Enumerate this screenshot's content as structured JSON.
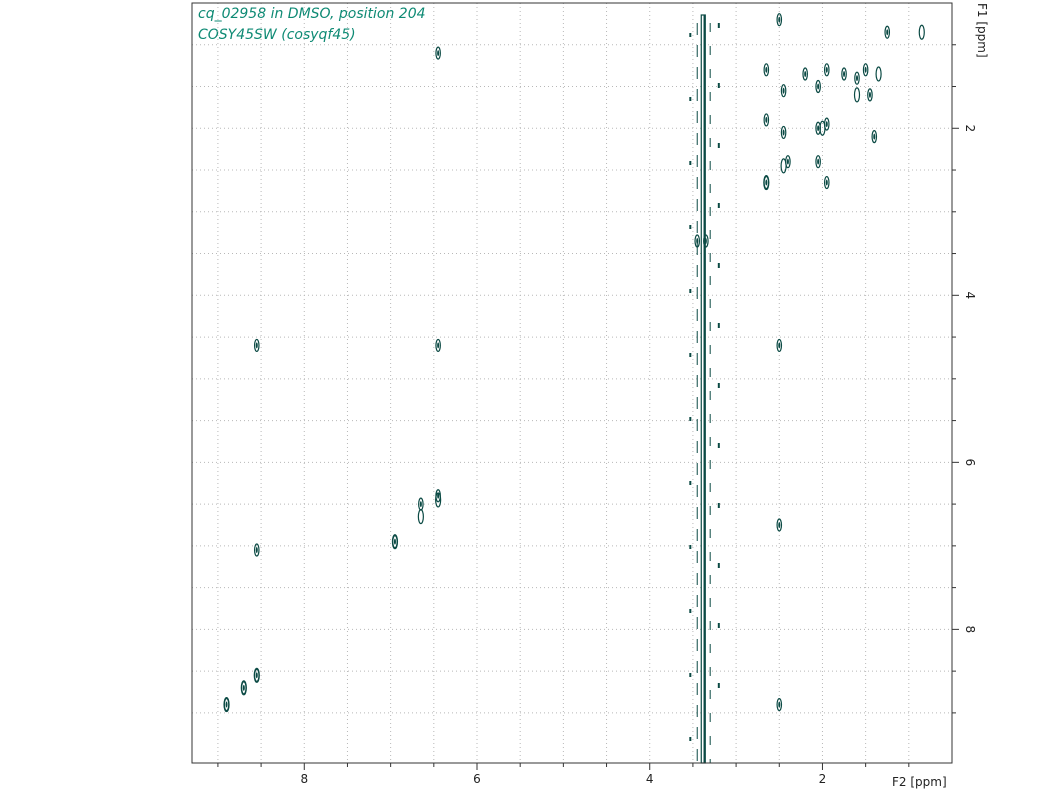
{
  "header": {
    "line1": "cq_02958 in DMSO, position 204",
    "line2": "COSY45SW (cosyqf45)"
  },
  "chart_data": {
    "type": "scatter",
    "subtype": "2D NMR COSY contour plot",
    "xlabel": "F2 [ppm]",
    "ylabel": "F1 [ppm]",
    "x_axis_reversed": true,
    "y_axis_reversed": true,
    "xlim": [
      9.3,
      0.5
    ],
    "ylim": [
      0.5,
      9.6
    ],
    "x_ticks": [
      8,
      6,
      4,
      2
    ],
    "y_ticks": [
      2,
      4,
      6,
      8
    ],
    "grid": "dotted",
    "contour_color": "#0b4a44",
    "series": [
      {
        "values": [
          {
            "x": 1.25,
            "y": 0.85
          },
          {
            "x": 2.5,
            "y": 0.7
          },
          {
            "x": 6.45,
            "y": 1.1
          },
          {
            "x": 2.65,
            "y": 1.3
          },
          {
            "x": 2.2,
            "y": 1.35
          },
          {
            "x": 1.95,
            "y": 1.3
          },
          {
            "x": 1.75,
            "y": 1.35
          },
          {
            "x": 1.6,
            "y": 1.4
          },
          {
            "x": 1.5,
            "y": 1.3
          },
          {
            "x": 2.45,
            "y": 1.55
          },
          {
            "x": 2.05,
            "y": 1.5
          },
          {
            "x": 1.45,
            "y": 1.6
          },
          {
            "x": 2.65,
            "y": 1.9
          },
          {
            "x": 2.45,
            "y": 2.05
          },
          {
            "x": 2.05,
            "y": 2.0
          },
          {
            "x": 1.95,
            "y": 1.95
          },
          {
            "x": 1.4,
            "y": 2.1
          },
          {
            "x": 2.4,
            "y": 2.4
          },
          {
            "x": 2.05,
            "y": 2.4
          },
          {
            "x": 2.65,
            "y": 2.65
          },
          {
            "x": 1.95,
            "y": 2.65
          },
          {
            "x": 3.45,
            "y": 3.35
          },
          {
            "x": 3.35,
            "y": 3.35
          },
          {
            "x": 8.55,
            "y": 4.6
          },
          {
            "x": 6.45,
            "y": 4.6
          },
          {
            "x": 2.5,
            "y": 4.6
          },
          {
            "x": 6.45,
            "y": 6.4
          },
          {
            "x": 6.65,
            "y": 6.5
          },
          {
            "x": 6.95,
            "y": 6.95
          },
          {
            "x": 2.5,
            "y": 6.75
          },
          {
            "x": 8.55,
            "y": 7.05
          },
          {
            "x": 8.55,
            "y": 8.55
          },
          {
            "x": 8.7,
            "y": 8.7
          },
          {
            "x": 8.9,
            "y": 8.9
          },
          {
            "x": 2.5,
            "y": 8.9
          }
        ]
      }
    ]
  }
}
